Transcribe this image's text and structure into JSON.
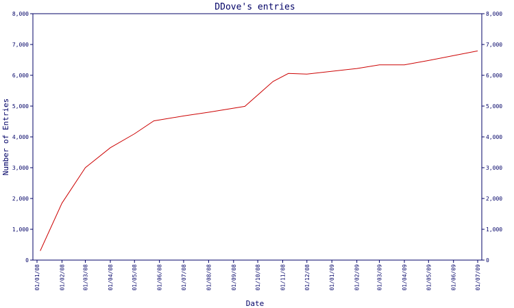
{
  "chart_data": {
    "type": "line",
    "title": "DDove's entries",
    "xlabel": "Date",
    "ylabel": "Number of Entries",
    "ylim": [
      0,
      8000
    ],
    "y_ticks": [
      0,
      1000,
      2000,
      3000,
      4000,
      5000,
      6000,
      7000,
      8000
    ],
    "y_tick_labels": [
      "0",
      "1,000",
      "2,000",
      "3,000",
      "4,000",
      "5,000",
      "6,000",
      "7,000",
      "8,000"
    ],
    "x_tick_labels": [
      "01/01/08",
      "01/02/08",
      "01/03/08",
      "01/04/08",
      "01/05/08",
      "01/06/08",
      "01/07/08",
      "01/08/08",
      "01/09/08",
      "01/10/08",
      "01/11/08",
      "01/12/08",
      "01/01/09",
      "01/02/09",
      "01/03/09",
      "01/04/09",
      "01/05/09",
      "01/06/09",
      "01/07/09"
    ],
    "grid": false,
    "series": [
      {
        "color": "#cc0000",
        "points": [
          {
            "x": "2008-01-05",
            "y": 300
          },
          {
            "x": "2008-02-01",
            "y": 1850
          },
          {
            "x": "2008-03-01",
            "y": 3000
          },
          {
            "x": "2008-04-01",
            "y": 3650
          },
          {
            "x": "2008-05-01",
            "y": 4100
          },
          {
            "x": "2008-05-25",
            "y": 4520
          },
          {
            "x": "2008-07-01",
            "y": 4680
          },
          {
            "x": "2008-08-01",
            "y": 4800
          },
          {
            "x": "2008-09-15",
            "y": 4990
          },
          {
            "x": "2008-10-20",
            "y": 5800
          },
          {
            "x": "2008-11-08",
            "y": 6060
          },
          {
            "x": "2008-12-01",
            "y": 6040
          },
          {
            "x": "2009-02-01",
            "y": 6220
          },
          {
            "x": "2009-03-01",
            "y": 6340
          },
          {
            "x": "2009-04-01",
            "y": 6340
          },
          {
            "x": "2009-05-01",
            "y": 6480
          },
          {
            "x": "2009-06-01",
            "y": 6640
          },
          {
            "x": "2009-07-01",
            "y": 6790
          }
        ]
      }
    ]
  },
  "colors": {
    "axis": "#000066",
    "text": "#000066",
    "line": "#cc0000",
    "background": "#ffffff"
  }
}
